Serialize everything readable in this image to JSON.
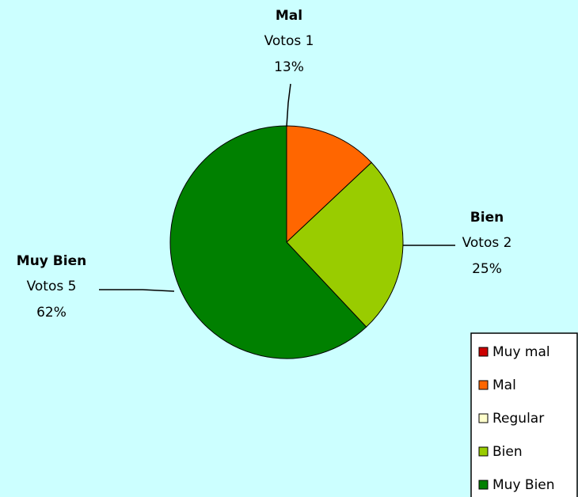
{
  "chart_data": {
    "type": "pie",
    "categories": [
      "Muy mal",
      "Mal",
      "Regular",
      "Bien",
      "Muy Bien"
    ],
    "values": [
      0,
      13,
      0,
      25,
      62
    ],
    "value_labels": [
      null,
      "13%",
      null,
      "25%",
      "62%"
    ],
    "votes": [
      0,
      1,
      0,
      2,
      5
    ],
    "vote_labels": [
      null,
      "Votos 1",
      null,
      "Votos 2",
      "Votos 5"
    ],
    "colors": [
      "#cc0000",
      "#ff6600",
      "#ffffcc",
      "#99cc00",
      "#008000"
    ],
    "legend": "bottom-right"
  }
}
